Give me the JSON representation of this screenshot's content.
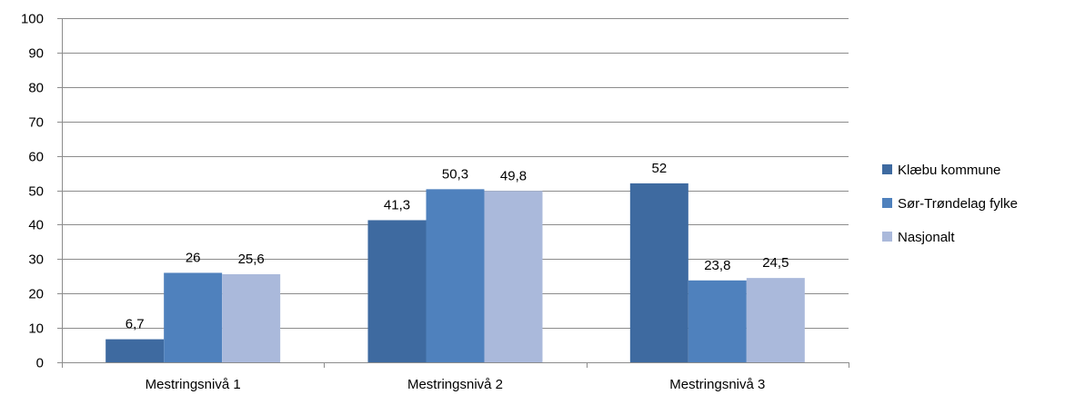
{
  "chart_data": {
    "type": "bar",
    "title": "",
    "xlabel": "",
    "ylabel": "",
    "ylim": [
      0,
      100
    ],
    "yticks": [
      0,
      10,
      20,
      30,
      40,
      50,
      60,
      70,
      80,
      90,
      100
    ],
    "grid": true,
    "legend_position": "right",
    "categories": [
      "Mestringsnivå 1",
      "Mestringsnivå 2",
      "Mestringsnivå 3"
    ],
    "series": [
      {
        "name": "Klæbu kommune",
        "color": "#3e6aa0",
        "values": [
          6.7,
          41.3,
          52
        ],
        "labels": [
          "6,7",
          "41,3",
          "52"
        ]
      },
      {
        "name": "Sør-Trøndelag fylke",
        "color": "#4f81bd",
        "values": [
          26,
          50.3,
          23.8
        ],
        "labels": [
          "26",
          "50,3",
          "23,8"
        ]
      },
      {
        "name": "Nasjonalt",
        "color": "#aab9db",
        "values": [
          25.6,
          49.8,
          24.5
        ],
        "labels": [
          "25,6",
          "49,8",
          "24,5"
        ]
      }
    ]
  }
}
